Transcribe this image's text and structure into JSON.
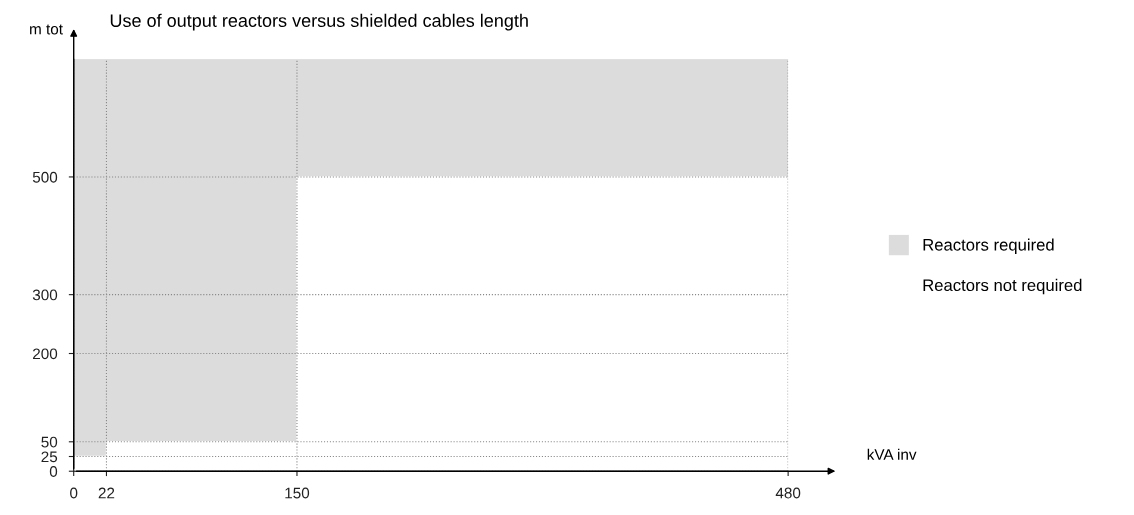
{
  "chart_data": {
    "type": "area",
    "title": "Use of output reactors versus shielded cables length",
    "xlabel": "kVA inv",
    "ylabel": "m tot",
    "stacked": true,
    "x": [
      0,
      22,
      22,
      150,
      150,
      480
    ],
    "series": [
      {
        "name": "Reactors not required",
        "color": "#ffffff",
        "values": [
          25,
          25,
          50,
          50,
          500,
          500
        ]
      },
      {
        "name": "Reactors required",
        "color": "#dcdcdc",
        "values": [
          675,
          675,
          650,
          650,
          200,
          200
        ]
      }
    ],
    "xlim": [
      0,
      480
    ],
    "xticks": [
      0,
      22,
      150,
      480
    ],
    "ylim": [
      0,
      700
    ],
    "yticks": [
      0,
      25,
      50,
      200,
      300,
      500
    ],
    "grid": true,
    "legend": "right"
  }
}
